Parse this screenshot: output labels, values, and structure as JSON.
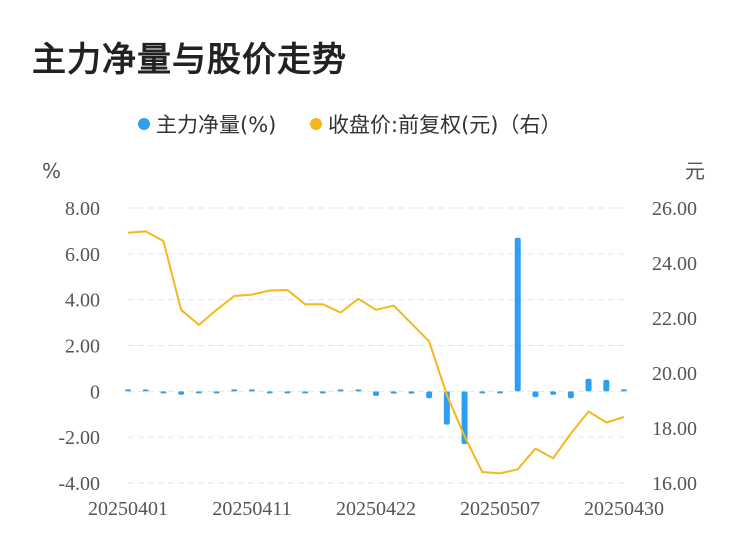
{
  "chart_data": {
    "type": "bar+line",
    "title": "主力净量与股价走势",
    "legend": [
      {
        "name": "主力净量(%)",
        "color": "#2b9ff0"
      },
      {
        "name": "收盘价:前复权(元)（右）",
        "color": "#f5b81c"
      }
    ],
    "left_axis": {
      "unit": "%",
      "ticks": [
        "8.00",
        "6.00",
        "4.00",
        "2.00",
        "0",
        "-2.00",
        "-4.00"
      ],
      "ylim": [
        -4,
        8
      ]
    },
    "right_axis": {
      "unit": "元",
      "ticks": [
        "26.00",
        "24.00",
        "22.00",
        "20.00",
        "18.00",
        "16.00"
      ],
      "ylim": [
        16,
        26
      ]
    },
    "x_tick_labels": [
      "20250401",
      "20250411",
      "20250422",
      "20250507",
      "20250430"
    ],
    "x_tick_index": [
      0,
      7,
      14,
      21,
      28
    ],
    "series": [
      {
        "name": "主力净量(%)",
        "kind": "bar",
        "values": [
          0.02,
          0.08,
          -0.05,
          -0.15,
          -0.03,
          -0.08,
          0.0,
          0.04,
          -0.06,
          -0.05,
          -0.04,
          -0.06,
          0.0,
          0.02,
          -0.2,
          -0.1,
          -0.1,
          -0.3,
          -1.45,
          -2.3,
          -0.04,
          -0.04,
          6.7,
          -0.25,
          -0.15,
          -0.3,
          0.55,
          0.5,
          0.0
        ]
      },
      {
        "name": "收盘价:前复权(元)",
        "kind": "line",
        "values": [
          25.1,
          25.15,
          24.8,
          22.3,
          21.75,
          22.3,
          22.8,
          22.85,
          23.0,
          23.02,
          22.5,
          22.5,
          22.2,
          22.7,
          22.3,
          22.45,
          21.8,
          21.15,
          19.2,
          17.7,
          16.4,
          16.35,
          16.5,
          17.25,
          16.9,
          17.8,
          18.6,
          18.2,
          18.4
        ]
      }
    ]
  }
}
